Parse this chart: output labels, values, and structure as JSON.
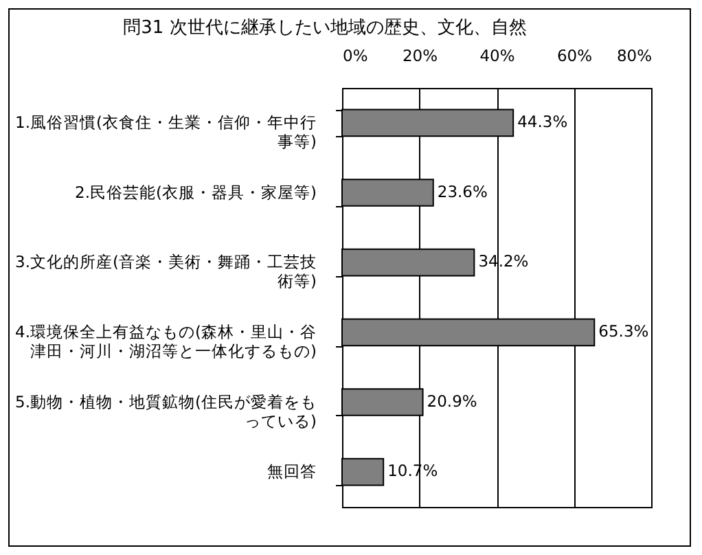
{
  "chart_data": {
    "type": "bar",
    "orientation": "horizontal",
    "title": "問31  次世代に継承したい地域の歴史、文化、自然",
    "categories": [
      "1.風俗習慣(衣食住・生業・信仰・年中行事等)",
      "2.民俗芸能(衣服・器具・家屋等)",
      "3.文化的所産(音楽・美術・舞踊・工芸技術等)",
      "4.環境保全上有益なもの(森林・里山・谷津田・河川・湖沼等と一体化するもの)",
      "5.動物・植物・地質鉱物(住民が愛着をもっている)",
      "無回答"
    ],
    "values": [
      44.3,
      23.6,
      34.2,
      65.3,
      20.9,
      10.7
    ],
    "value_labels": [
      "44.3%",
      "23.6%",
      "34.2%",
      "65.3%",
      "20.9%",
      "10.7%"
    ],
    "color": "#808080",
    "xlim": [
      0,
      80
    ],
    "xticks": [
      {
        "value": 0,
        "label": "0%"
      },
      {
        "value": 20,
        "label": "20%"
      },
      {
        "value": 40,
        "label": "40%"
      },
      {
        "value": 60,
        "label": "60%"
      },
      {
        "value": 80,
        "label": "80%"
      }
    ],
    "grid": "x"
  }
}
